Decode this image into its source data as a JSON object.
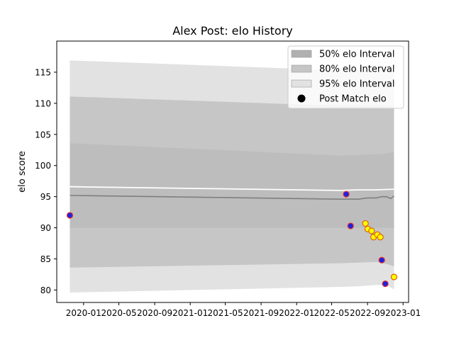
{
  "chart_data": {
    "type": "line",
    "title": "Alex Post: elo History",
    "xlabel": "",
    "ylabel": "elo score",
    "xlim": [
      "2019-10-01",
      "2023-01-20"
    ],
    "ylim": [
      78,
      120
    ],
    "x_ticks": [
      "2020-01",
      "2020-05",
      "2020-09",
      "2021-01",
      "2021-05",
      "2021-09",
      "2022-01",
      "2022-05",
      "2022-09",
      "2023-01"
    ],
    "y_ticks": [
      80,
      85,
      90,
      95,
      100,
      105,
      110,
      115
    ],
    "grid": false,
    "legend_position": "top-right",
    "legend": [
      {
        "label": "50% elo Interval",
        "kind": "patch",
        "color": "#b0b0b0"
      },
      {
        "label": "80% elo Interval",
        "kind": "patch",
        "color": "#c6c6c6"
      },
      {
        "label": "95% elo Interval",
        "kind": "patch",
        "color": "#e2e2e2"
      },
      {
        "label": "Post Match elo",
        "kind": "marker",
        "color": "#000000"
      }
    ],
    "bands": [
      {
        "name": "95% elo Interval",
        "color": "#e2e2e2",
        "x": [
          "2019-11-15",
          "2022-06-01",
          "2022-08-01",
          "2022-10-01",
          "2022-11-05",
          "2022-12-01"
        ],
        "upper": [
          116.9,
          115.3,
          115.3,
          115.2,
          115.3,
          115.2
        ],
        "lower": [
          79.6,
          80.5,
          80.6,
          80.8,
          80.8,
          80.1
        ]
      },
      {
        "name": "80% elo Interval",
        "color": "#c6c6c6",
        "x": [
          "2019-11-15",
          "2022-06-01",
          "2022-08-01",
          "2022-10-01",
          "2022-11-05",
          "2022-12-01"
        ],
        "upper": [
          111.1,
          109.6,
          109.6,
          109.6,
          109.6,
          109.5
        ],
        "lower": [
          83.6,
          84.3,
          84.4,
          84.5,
          84.2,
          83.8
        ]
      },
      {
        "name": "50% elo Interval",
        "color": "#bdbdbd",
        "x": [
          "2019-11-15",
          "2022-06-01",
          "2022-08-01",
          "2022-09-15",
          "2022-10-20",
          "2022-11-15",
          "2022-12-01"
        ],
        "upper": [
          103.6,
          101.6,
          101.7,
          101.8,
          101.8,
          102.1,
          102.1
        ],
        "lower": [
          90.0,
          90.0,
          90.0,
          90.0,
          90.0,
          90.0,
          90.0
        ]
      }
    ],
    "series": [
      {
        "role": "upper_edge",
        "color": "#ffffff",
        "x": [
          "2019-11-15",
          "2022-06-01",
          "2022-08-01",
          "2022-10-01",
          "2022-12-01"
        ],
        "values": [
          96.6,
          96.0,
          96.1,
          96.1,
          96.2
        ]
      },
      {
        "role": "mean",
        "color": "#7f7f7f",
        "x": [
          "2019-11-15",
          "2022-06-01",
          "2022-08-01",
          "2022-09-01",
          "2022-10-01",
          "2022-10-20",
          "2022-11-05",
          "2022-11-20",
          "2022-12-01"
        ],
        "values": [
          95.2,
          94.6,
          94.6,
          94.8,
          94.8,
          95.0,
          95.0,
          94.7,
          95.1
        ]
      }
    ],
    "points": [
      {
        "date": "2019-11-15",
        "value": 92.0,
        "face": "#2020e0",
        "edge": "#e03030"
      },
      {
        "date": "2022-06-20",
        "value": 95.4,
        "face": "#2020e0",
        "edge": "#e03030"
      },
      {
        "date": "2022-07-05",
        "value": 90.3,
        "face": "#2020e0",
        "edge": "#e03030"
      },
      {
        "date": "2022-08-25",
        "value": 90.7,
        "face": "#ffff00",
        "edge": "#e06000"
      },
      {
        "date": "2022-09-02",
        "value": 89.8,
        "face": "#ffff00",
        "edge": "#e06000"
      },
      {
        "date": "2022-09-15",
        "value": 89.5,
        "face": "#ffff00",
        "edge": "#e06000"
      },
      {
        "date": "2022-09-22",
        "value": 88.5,
        "face": "#ffff00",
        "edge": "#e06000"
      },
      {
        "date": "2022-10-05",
        "value": 88.9,
        "face": "#ffff00",
        "edge": "#e06000"
      },
      {
        "date": "2022-10-15",
        "value": 88.5,
        "face": "#ffff00",
        "edge": "#e06000"
      },
      {
        "date": "2022-10-20",
        "value": 84.8,
        "face": "#2020e0",
        "edge": "#e03030"
      },
      {
        "date": "2022-11-01",
        "value": 81.0,
        "face": "#2020e0",
        "edge": "#e03030"
      },
      {
        "date": "2022-12-01",
        "value": 82.1,
        "face": "#ffff00",
        "edge": "#e06000"
      }
    ]
  }
}
